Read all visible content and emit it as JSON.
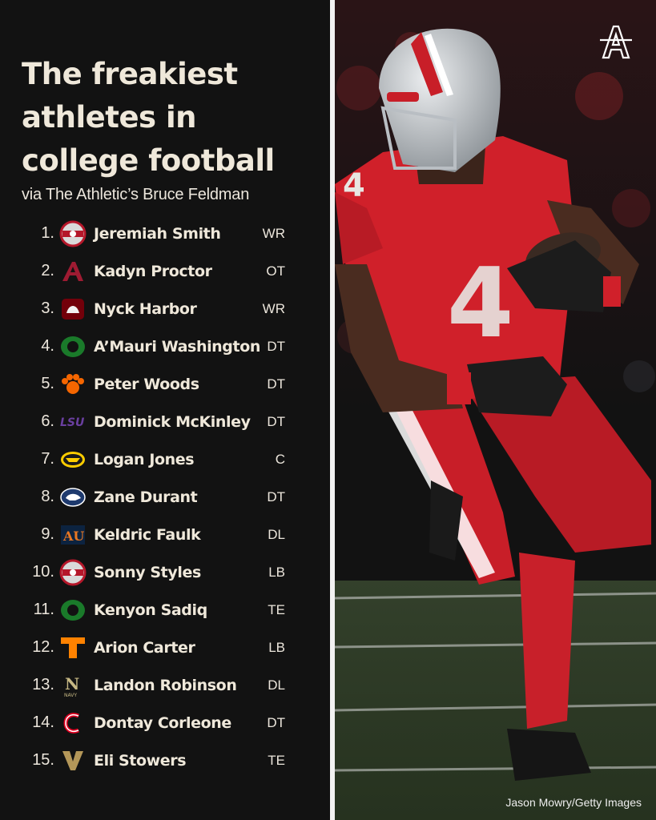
{
  "headline": "The freakiest athletes in college football",
  "subtitle": "via The Athletic’s Bruce Feldman",
  "photo_credit": "Jason Mowry/Getty Images",
  "photo_jersey_number": "4",
  "brand_logo_letter": "A",
  "players": [
    {
      "rank": "1.",
      "name": "Jeremiah Smith",
      "position": "WR",
      "logo_icon": "ohio-state-logo"
    },
    {
      "rank": "2.",
      "name": "Kadyn Proctor",
      "position": "OT",
      "logo_icon": "alabama-logo"
    },
    {
      "rank": "3.",
      "name": "Nyck Harbor",
      "position": "WR",
      "logo_icon": "south-carolina-logo"
    },
    {
      "rank": "4.",
      "name": "A’Mauri Washington",
      "position": "DT",
      "logo_icon": "oregon-logo"
    },
    {
      "rank": "5.",
      "name": "Peter Woods",
      "position": "DT",
      "logo_icon": "clemson-logo"
    },
    {
      "rank": "6.",
      "name": "Dominick McKinley",
      "position": "DT",
      "logo_icon": "lsu-logo"
    },
    {
      "rank": "7.",
      "name": "Logan Jones",
      "position": "C",
      "logo_icon": "iowa-logo"
    },
    {
      "rank": "8.",
      "name": "Zane Durant",
      "position": "DT",
      "logo_icon": "penn-state-logo"
    },
    {
      "rank": "9.",
      "name": "Keldric Faulk",
      "position": "DL",
      "logo_icon": "auburn-logo"
    },
    {
      "rank": "10.",
      "name": "Sonny Styles",
      "position": "LB",
      "logo_icon": "ohio-state-logo"
    },
    {
      "rank": "11.",
      "name": "Kenyon Sadiq",
      "position": "TE",
      "logo_icon": "oregon-logo"
    },
    {
      "rank": "12.",
      "name": "Arion Carter",
      "position": "LB",
      "logo_icon": "tennessee-logo"
    },
    {
      "rank": "13.",
      "name": "Landon Robinson",
      "position": "DL",
      "logo_icon": "navy-logo"
    },
    {
      "rank": "14.",
      "name": "Dontay Corleone",
      "position": "DT",
      "logo_icon": "cincinnati-logo"
    },
    {
      "rank": "15.",
      "name": "Eli Stowers",
      "position": "TE",
      "logo_icon": "vanderbilt-logo"
    }
  ],
  "colors": {
    "background": "#121212",
    "headline": "#efe8da",
    "jersey_red": "#d0202a",
    "field_green": "#2f3d27"
  }
}
